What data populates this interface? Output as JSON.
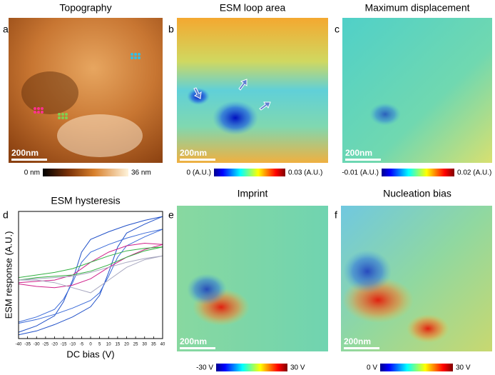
{
  "panels": [
    {
      "letter": "a",
      "title": "Topography",
      "scale_bar": "200nm",
      "colorbar": {
        "min_label": "0 nm",
        "max_label": "36 nm"
      }
    },
    {
      "letter": "b",
      "title": "ESM loop area",
      "scale_bar": "200nm",
      "colorbar": {
        "min_label": "0 (A.U.)",
        "max_label": "0.03 (A.U.)"
      }
    },
    {
      "letter": "c",
      "title": "Maximum displacement",
      "scale_bar": "200nm",
      "colorbar": {
        "min_label": "-0.01 (A.U.)",
        "max_label": "0.02 (A.U.)"
      }
    },
    {
      "letter": "e",
      "title": "Imprint",
      "scale_bar": "200nm",
      "colorbar": {
        "min_label": "-30 V",
        "max_label": "30 V"
      }
    },
    {
      "letter": "f",
      "title": "Nucleation bias",
      "scale_bar": "200nm",
      "colorbar": {
        "min_label": "0 V",
        "max_label": "30 V"
      }
    }
  ],
  "chart_data": {
    "type": "line",
    "letter": "d",
    "title": "ESM hysteresis",
    "x_label": "DC bias (V)",
    "y_label": "ESM response (A.U.)",
    "xlim": [
      -40,
      40
    ],
    "xticks": [
      -40,
      -35,
      -30,
      -25,
      -20,
      -15,
      -10,
      -5,
      0,
      5,
      10,
      15,
      20,
      25,
      30,
      35,
      40
    ],
    "ylim": [
      0,
      10
    ],
    "series": [
      {
        "color": "#2050c8",
        "x": [
          -40,
          -30,
          -20,
          -10,
          0,
          5,
          10,
          15,
          20,
          30,
          40,
          30,
          20,
          10,
          0,
          -5,
          -10,
          -15,
          -20,
          -30,
          -40
        ],
        "y": [
          0.3,
          0.6,
          1.1,
          1.7,
          2.5,
          3.4,
          5.2,
          7.2,
          8.3,
          9.0,
          9.6,
          9.3,
          8.9,
          8.4,
          7.8,
          6.8,
          4.6,
          2.9,
          1.8,
          1.0,
          0.5
        ]
      },
      {
        "color": "#3a6ad8",
        "x": [
          -40,
          -30,
          -20,
          -10,
          0,
          5,
          10,
          15,
          20,
          30,
          40,
          30,
          20,
          10,
          0,
          -5,
          -10,
          -15,
          -20,
          -30,
          -40
        ],
        "y": [
          1.2,
          1.5,
          1.9,
          2.4,
          3.0,
          3.6,
          4.9,
          6.4,
          7.3,
          8.0,
          8.6,
          8.3,
          7.9,
          7.4,
          6.8,
          6.0,
          4.4,
          3.1,
          2.3,
          1.7,
          1.3
        ]
      },
      {
        "color": "#d0208a",
        "x": [
          -40,
          -30,
          -20,
          -10,
          0,
          10,
          20,
          30,
          40,
          30,
          20,
          10,
          0,
          -10,
          -20,
          -30,
          -40
        ],
        "y": [
          4.3,
          4.1,
          4.0,
          4.2,
          4.7,
          5.6,
          6.4,
          7.0,
          7.4,
          7.5,
          7.3,
          6.8,
          6.0,
          5.0,
          4.6,
          4.5,
          4.4
        ]
      },
      {
        "color": "#30b040",
        "x": [
          -40,
          -30,
          -20,
          -10,
          0,
          10,
          20,
          30,
          40,
          30,
          20,
          10,
          0,
          -10,
          -20,
          -30,
          -40
        ],
        "y": [
          4.6,
          4.8,
          4.9,
          5.0,
          5.3,
          5.8,
          6.4,
          6.9,
          7.2,
          7.1,
          6.9,
          6.5,
          6.0,
          5.5,
          5.2,
          5.0,
          4.8
        ]
      },
      {
        "color": "#a8a8c0",
        "x": [
          -40,
          -30,
          -20,
          -10,
          0,
          10,
          20,
          30,
          40,
          30,
          20,
          10,
          0,
          -10,
          -20,
          -30,
          -40
        ],
        "y": [
          4.6,
          4.6,
          4.4,
          4.0,
          3.6,
          4.6,
          5.6,
          6.2,
          6.5,
          6.3,
          6.0,
          5.6,
          5.2,
          4.9,
          4.8,
          4.7,
          4.6
        ]
      }
    ]
  }
}
